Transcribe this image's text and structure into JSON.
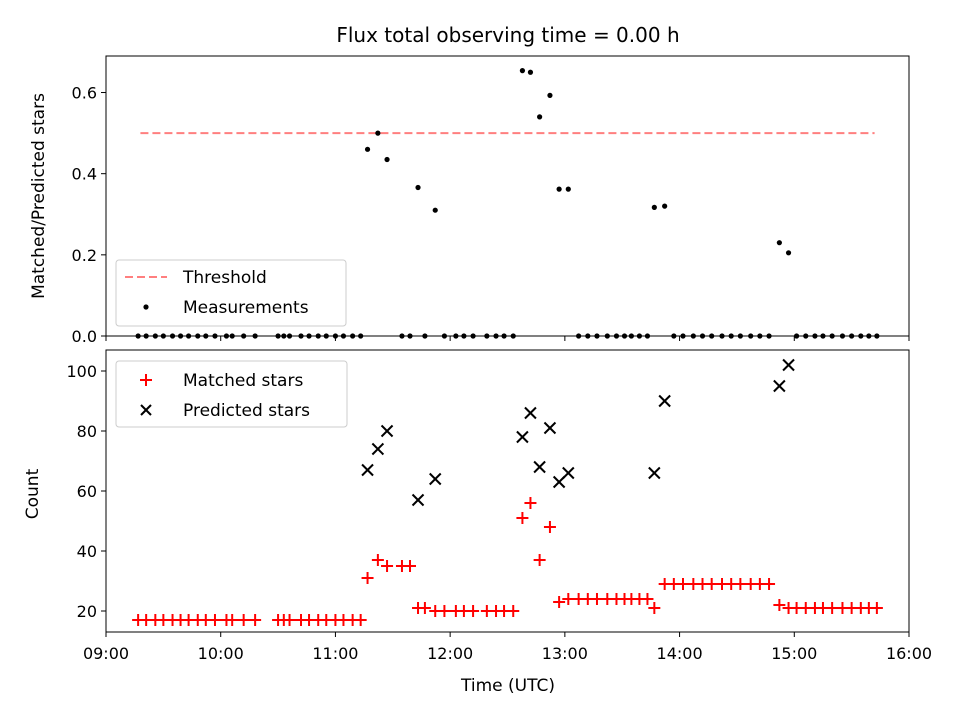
{
  "chart_data": [
    {
      "type": "scatter",
      "title": "Flux total observing time = 0.00 h",
      "xlabel": "",
      "ylabel": "Matched/Predicted stars",
      "xlim": [
        9.0,
        16.0
      ],
      "ylim": [
        0.0,
        0.69
      ],
      "yticks": [
        0.0,
        0.2,
        0.4,
        0.6
      ],
      "ytick_labels": [
        "0.0",
        "0.2",
        "0.4",
        "0.6"
      ],
      "legend_position": "lower-left",
      "series": [
        {
          "name": "Threshold",
          "kind": "dashed-line",
          "color": "#ff7f7f",
          "x": [
            9.3,
            15.7
          ],
          "y": [
            0.5,
            0.5
          ]
        },
        {
          "name": "Measurements",
          "kind": "dot",
          "color": "#000000",
          "x": [
            9.28,
            9.35,
            9.43,
            9.5,
            9.58,
            9.65,
            9.72,
            9.8,
            9.87,
            9.95,
            10.05,
            10.1,
            10.2,
            10.3,
            10.5,
            10.55,
            10.6,
            10.7,
            10.77,
            10.85,
            10.92,
            11.0,
            11.07,
            11.15,
            11.22,
            11.28,
            11.37,
            11.45,
            11.58,
            11.65,
            11.72,
            11.78,
            11.87,
            11.95,
            12.05,
            12.12,
            12.2,
            12.32,
            12.4,
            12.47,
            12.55,
            12.63,
            12.7,
            12.78,
            12.87,
            12.95,
            13.03,
            13.12,
            13.2,
            13.28,
            13.37,
            13.45,
            13.52,
            13.58,
            13.65,
            13.72,
            13.78,
            13.87,
            13.95,
            14.03,
            14.12,
            14.2,
            14.28,
            14.37,
            14.45,
            14.53,
            14.62,
            14.7,
            14.78,
            14.87,
            14.95,
            15.02,
            15.1,
            15.18,
            15.25,
            15.33,
            15.42,
            15.5,
            15.58,
            15.65,
            15.72
          ],
          "y": [
            0,
            0,
            0,
            0,
            0,
            0,
            0,
            0,
            0,
            0,
            0,
            0,
            0,
            0,
            0,
            0,
            0,
            0,
            0,
            0,
            0,
            0,
            0,
            0,
            0,
            0.46,
            0.5,
            0.435,
            0,
            0,
            0.366,
            0,
            0.31,
            0,
            0,
            0,
            0,
            0,
            0,
            0,
            0,
            0.654,
            0.65,
            0.54,
            0.593,
            0.362,
            0.362,
            0,
            0,
            0,
            0,
            0,
            0,
            0,
            0,
            0,
            0.317,
            0.32,
            0,
            0,
            0,
            0,
            0,
            0,
            0,
            0,
            0,
            0,
            0,
            0.23,
            0.205,
            0,
            0,
            0,
            0,
            0,
            0,
            0,
            0,
            0,
            0
          ]
        }
      ]
    },
    {
      "type": "scatter",
      "title": "",
      "xlabel": "Time (UTC)",
      "ylabel": "Count",
      "xlim": [
        9.0,
        16.0
      ],
      "ylim": [
        13,
        107
      ],
      "yticks": [
        20,
        40,
        60,
        80,
        100
      ],
      "ytick_labels": [
        "20",
        "40",
        "60",
        "80",
        "100"
      ],
      "xticks": [
        9,
        10,
        11,
        12,
        13,
        14,
        15,
        16
      ],
      "xtick_labels": [
        "09:00",
        "10:00",
        "11:00",
        "12:00",
        "13:00",
        "14:00",
        "15:00",
        "16:00"
      ],
      "legend_position": "upper-left",
      "series": [
        {
          "name": "Matched stars",
          "kind": "plus",
          "color": "#ff0000",
          "x": [
            9.28,
            9.35,
            9.43,
            9.5,
            9.58,
            9.65,
            9.72,
            9.8,
            9.87,
            9.95,
            10.05,
            10.1,
            10.2,
            10.3,
            10.5,
            10.55,
            10.6,
            10.7,
            10.77,
            10.85,
            10.92,
            11.0,
            11.07,
            11.15,
            11.22,
            11.28,
            11.37,
            11.45,
            11.58,
            11.65,
            11.72,
            11.78,
            11.87,
            11.95,
            12.05,
            12.12,
            12.2,
            12.32,
            12.4,
            12.47,
            12.55,
            12.63,
            12.7,
            12.78,
            12.87,
            12.95,
            13.03,
            13.12,
            13.2,
            13.28,
            13.37,
            13.45,
            13.52,
            13.58,
            13.65,
            13.72,
            13.78,
            13.87,
            13.95,
            14.03,
            14.12,
            14.2,
            14.28,
            14.37,
            14.45,
            14.53,
            14.62,
            14.7,
            14.78,
            14.87,
            14.95,
            15.02,
            15.1,
            15.18,
            15.25,
            15.33,
            15.42,
            15.5,
            15.58,
            15.65,
            15.72
          ],
          "y": [
            17,
            17,
            17,
            17,
            17,
            17,
            17,
            17,
            17,
            17,
            17,
            17,
            17,
            17,
            17,
            17,
            17,
            17,
            17,
            17,
            17,
            17,
            17,
            17,
            17,
            31,
            37,
            35,
            35,
            35,
            21,
            21,
            20,
            20,
            20,
            20,
            20,
            20,
            20,
            20,
            20,
            51,
            56,
            37,
            48,
            23,
            24,
            24,
            24,
            24,
            24,
            24,
            24,
            24,
            24,
            24,
            21,
            29,
            29,
            29,
            29,
            29,
            29,
            29,
            29,
            29,
            29,
            29,
            29,
            22,
            21,
            21,
            21,
            21,
            21,
            21,
            21,
            21,
            21,
            21,
            21
          ]
        },
        {
          "name": "Predicted stars",
          "kind": "x",
          "color": "#000000",
          "x": [
            11.28,
            11.37,
            11.45,
            11.72,
            11.87,
            12.63,
            12.7,
            12.78,
            12.87,
            12.95,
            13.03,
            13.78,
            13.87,
            14.87,
            14.95
          ],
          "y": [
            67,
            74,
            80,
            57,
            64,
            78,
            86,
            68,
            81,
            63,
            66,
            66,
            90,
            95,
            102
          ]
        }
      ]
    }
  ]
}
